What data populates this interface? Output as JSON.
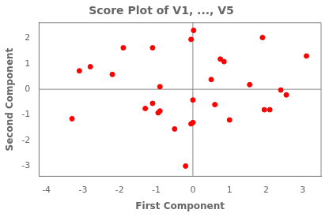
{
  "chart_data": {
    "type": "scatter",
    "title": "Score Plot of V1, ..., V5",
    "xlabel": "First Component",
    "ylabel": "Second Component",
    "x": [
      -3.3,
      -3.1,
      -2.8,
      -2.2,
      -1.9,
      -1.1,
      -0.9,
      -1.1,
      -1.3,
      -0.9,
      -0.95,
      -0.5,
      -0.2,
      0.02,
      -0.05,
      0.0,
      0.0,
      -0.05,
      0.5,
      0.6,
      0.75,
      0.85,
      1.0,
      1.55,
      1.9,
      1.95,
      2.1,
      2.4,
      2.55,
      3.1
    ],
    "values": [
      -1.15,
      0.72,
      0.88,
      0.58,
      1.62,
      1.62,
      0.1,
      -0.55,
      -0.75,
      -0.85,
      -0.92,
      -1.55,
      -3.0,
      2.3,
      1.95,
      -0.42,
      -1.3,
      -1.35,
      0.38,
      -0.6,
      1.18,
      1.08,
      -1.2,
      0.18,
      2.02,
      -0.8,
      -0.8,
      -0.03,
      -0.22,
      1.3
    ],
    "color": "#ff0000",
    "xlim": [
      -4.2,
      3.5
    ],
    "ylim": [
      -3.4,
      2.6
    ],
    "xticks": [
      -4,
      -3,
      -2,
      -1,
      0,
      1,
      2,
      3
    ],
    "yticks": [
      -3,
      -2,
      -1,
      0,
      1,
      2
    ],
    "grid": false
  }
}
